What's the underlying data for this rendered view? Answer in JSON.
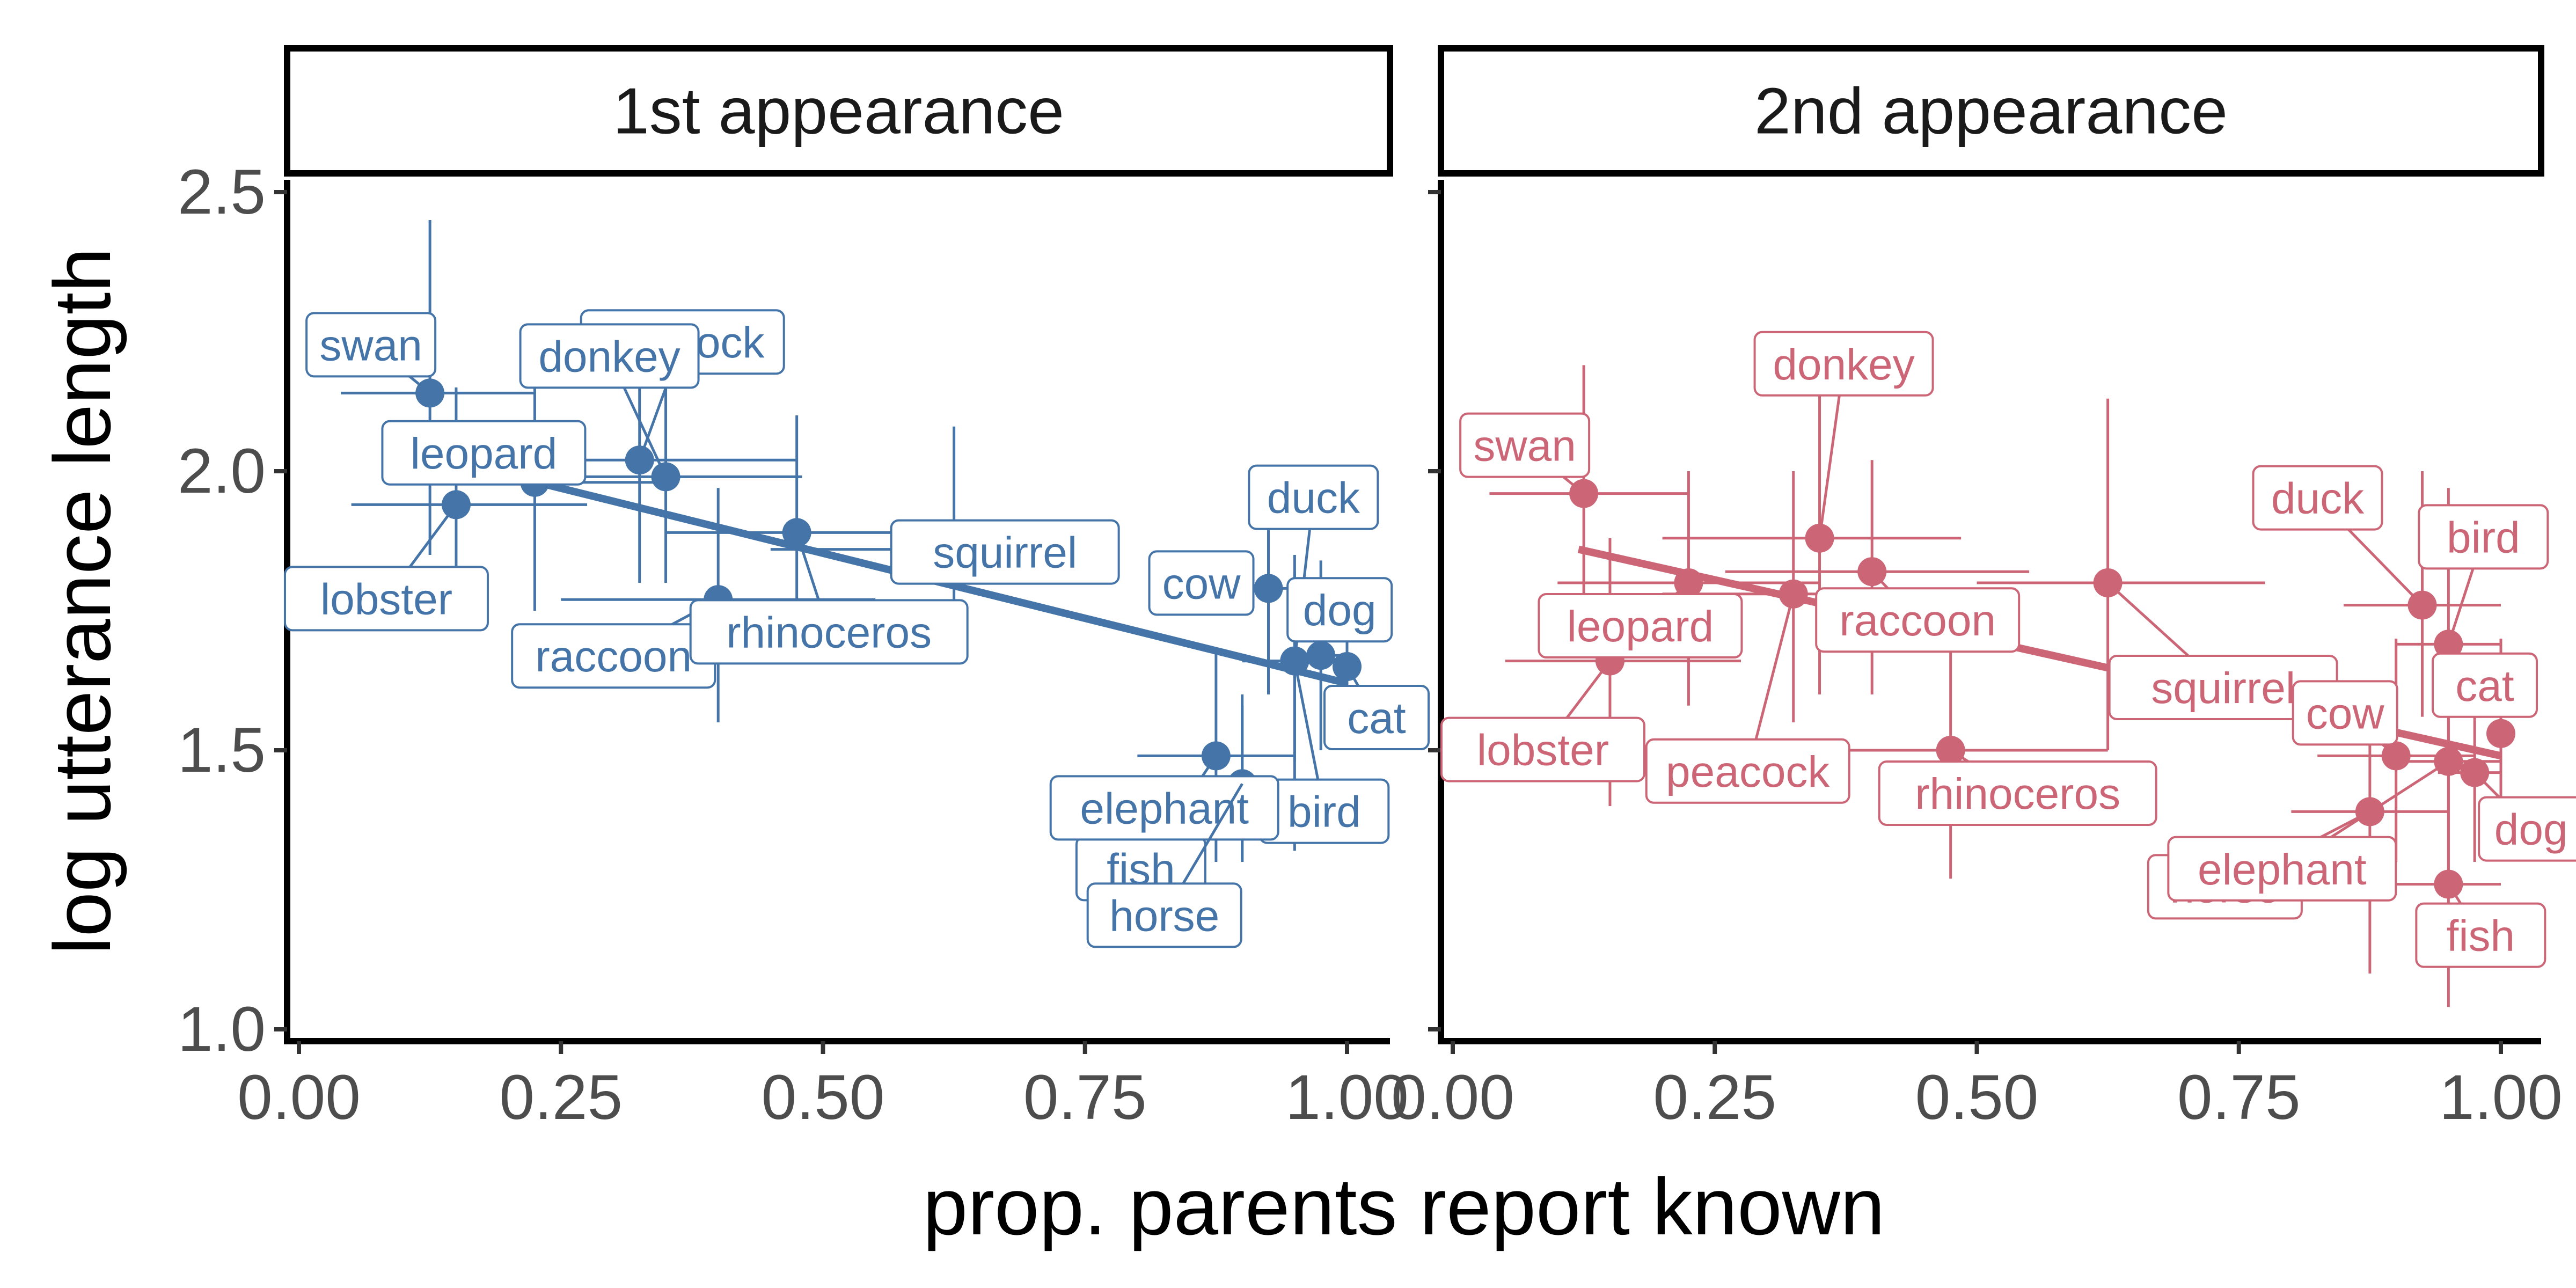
{
  "chart_data": {
    "type": "scatter",
    "xlabel": "prop. parents report known",
    "ylabel": "log utterance length",
    "xlim": [
      0,
      1
    ],
    "ylim": [
      1,
      2.5
    ],
    "x_ticks": [
      "0.00",
      "0.25",
      "0.50",
      "0.75",
      "1.00"
    ],
    "y_ticks": [
      "1.0",
      "1.5",
      "2.0",
      "2.5"
    ],
    "grid": false,
    "legend": "none",
    "facets": [
      {
        "strip": "1st appearance",
        "color": "#4575a8",
        "trend_line": {
          "x": [
            0.12,
            1.0
          ],
          "y": [
            2.03,
            1.62
          ]
        },
        "points": [
          {
            "label": "swan",
            "x": 0.125,
            "y": 2.14,
            "x_err": [
              0.04,
              0.225
            ],
            "y_err": [
              1.85,
              2.45
            ]
          },
          {
            "label": "lobster",
            "x": 0.15,
            "y": 1.94,
            "x_err": [
              0.05,
              0.275
            ],
            "y_err": [
              1.72,
              2.15
            ]
          },
          {
            "label": "leopard",
            "x": 0.225,
            "y": 1.98,
            "x_err": [
              0.1,
              0.35
            ],
            "y_err": [
              1.75,
              2.23
            ]
          },
          {
            "label": "peacock",
            "x": 0.325,
            "y": 2.02,
            "x_err": [
              0.2,
              0.475
            ],
            "y_err": [
              1.8,
              2.22
            ]
          },
          {
            "label": "donkey",
            "x": 0.35,
            "y": 1.99,
            "x_err": [
              0.2,
              0.48
            ],
            "y_err": [
              1.8,
              2.18
            ]
          },
          {
            "label": "raccoon",
            "x": 0.4,
            "y": 1.77,
            "x_err": [
              0.25,
              0.55
            ],
            "y_err": [
              1.55,
              1.97
            ]
          },
          {
            "label": "rhinoceros",
            "x": 0.475,
            "y": 1.89,
            "x_err": [
              0.35,
              0.61
            ],
            "y_err": [
              1.66,
              2.1
            ]
          },
          {
            "label": "squirrel",
            "x": 0.625,
            "y": 1.86,
            "x_err": [
              0.45,
              0.775
            ],
            "y_err": [
              1.66,
              2.08
            ]
          },
          {
            "label": "cow",
            "x": 0.925,
            "y": 1.79,
            "x_err": [
              0.875,
              0.975
            ],
            "y_err": [
              1.6,
              1.97
            ]
          },
          {
            "label": "duck",
            "x": 0.95,
            "y": 1.66,
            "x_err": [
              0.9,
              1.0
            ],
            "y_err": [
              1.48,
              1.85
            ]
          },
          {
            "label": "dog",
            "x": 0.975,
            "y": 1.67,
            "x_err": [
              0.94,
              1.0
            ],
            "y_err": [
              1.5,
              1.84
            ]
          },
          {
            "label": "cat",
            "x": 1.0,
            "y": 1.65,
            "x_err": [
              1.0,
              1.0
            ],
            "y_err": [
              1.5,
              1.8
            ]
          },
          {
            "label": "fish",
            "x": 0.875,
            "y": 1.49,
            "x_err": [
              0.8,
              0.95
            ],
            "y_err": [
              1.3,
              1.68
            ]
          },
          {
            "label": "bird",
            "x": 0.95,
            "y": 1.66,
            "x_err": [
              0.9,
              1.0
            ],
            "y_err": [
              1.32,
              1.82
            ]
          },
          {
            "label": "elephant",
            "x": 0.9,
            "y": 1.44,
            "x_err": [
              0.825,
              0.975
            ],
            "y_err": [
              1.3,
              1.6
            ]
          },
          {
            "label": "horse",
            "x": 0.9,
            "y": 1.44,
            "x_err": [
              0.85,
              0.95
            ],
            "y_err": [
              1.3,
              1.58
            ]
          }
        ]
      },
      {
        "strip": "2nd appearance",
        "color": "#cc6677",
        "trend_line": {
          "x": [
            0.12,
            1.0
          ],
          "y": [
            1.86,
            1.49
          ]
        },
        "points": [
          {
            "label": "swan",
            "x": 0.125,
            "y": 1.96,
            "x_err": [
              0.035,
              0.225
            ],
            "y_err": [
              1.73,
              2.19
            ]
          },
          {
            "label": "leopard",
            "x": 0.225,
            "y": 1.8,
            "x_err": [
              0.1,
              0.35
            ],
            "y_err": [
              1.58,
              2.0
            ]
          },
          {
            "label": "lobster",
            "x": 0.15,
            "y": 1.66,
            "x_err": [
              0.05,
              0.275
            ],
            "y_err": [
              1.4,
              1.88
            ]
          },
          {
            "label": "peacock",
            "x": 0.325,
            "y": 1.78,
            "x_err": [
              0.2,
              0.475
            ],
            "y_err": [
              1.55,
              2.0
            ]
          },
          {
            "label": "donkey",
            "x": 0.35,
            "y": 1.88,
            "x_err": [
              0.2,
              0.485
            ],
            "y_err": [
              1.6,
              2.2
            ]
          },
          {
            "label": "raccoon",
            "x": 0.4,
            "y": 1.82,
            "x_err": [
              0.26,
              0.55
            ],
            "y_err": [
              1.6,
              2.02
            ]
          },
          {
            "label": "rhinoceros",
            "x": 0.475,
            "y": 1.5,
            "x_err": [
              0.325,
              0.625
            ],
            "y_err": [
              1.27,
              1.72
            ]
          },
          {
            "label": "squirrel",
            "x": 0.625,
            "y": 1.8,
            "x_err": [
              0.5,
              0.775
            ],
            "y_err": [
              1.5,
              2.13
            ]
          },
          {
            "label": "duck",
            "x": 0.925,
            "y": 1.76,
            "x_err": [
              0.85,
              1.0
            ],
            "y_err": [
              1.56,
              2.0
            ]
          },
          {
            "label": "bird",
            "x": 0.95,
            "y": 1.69,
            "x_err": [
              0.9,
              1.0
            ],
            "y_err": [
              1.5,
              1.97
            ]
          },
          {
            "label": "cat",
            "x": 1.0,
            "y": 1.53,
            "x_err": [
              1.0,
              1.0
            ],
            "y_err": [
              1.4,
              1.7
            ]
          },
          {
            "label": "cow",
            "x": 0.9,
            "y": 1.49,
            "x_err": [
              0.825,
              0.975
            ],
            "y_err": [
              1.3,
              1.7
            ]
          },
          {
            "label": "horse",
            "x": 0.875,
            "y": 1.39,
            "x_err": [
              0.8,
              0.95
            ],
            "y_err": [
              1.1,
              1.6
            ]
          },
          {
            "label": "dog",
            "x": 0.975,
            "y": 1.46,
            "x_err": [
              0.94,
              1.0
            ],
            "y_err": [
              1.3,
              1.6
            ]
          },
          {
            "label": "elephant",
            "x": 0.95,
            "y": 1.48,
            "x_err": [
              0.9,
              1.0
            ],
            "y_err": [
              1.27,
              1.68
            ]
          },
          {
            "label": "fish",
            "x": 0.95,
            "y": 1.26,
            "x_err": [
              0.9,
              1.0
            ],
            "y_err": [
              1.04,
              1.5
            ]
          }
        ]
      }
    ]
  }
}
